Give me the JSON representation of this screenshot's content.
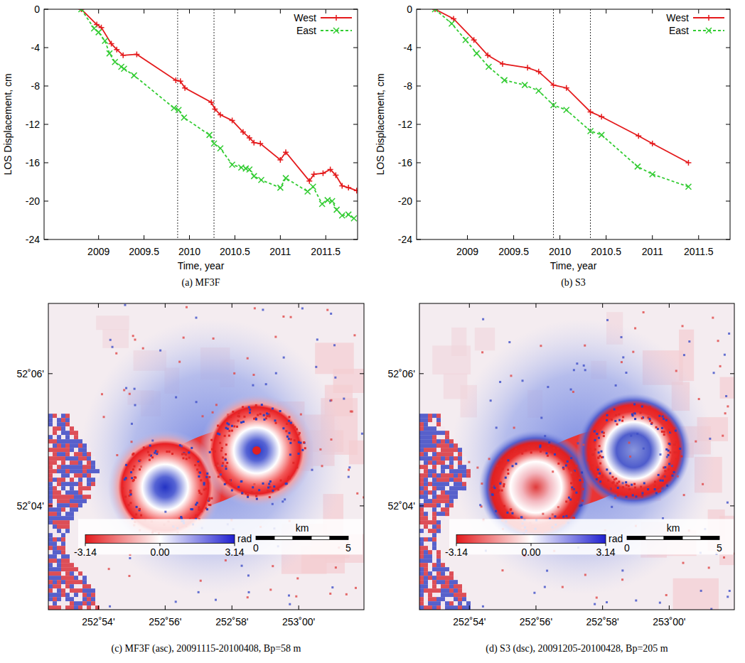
{
  "chart_data": [
    {
      "type": "line",
      "title": "(a) MF3F",
      "xlabel": "Time, year",
      "ylabel": "LOS Displacement, cm",
      "xlim": [
        2008.4,
        2011.85
      ],
      "ylim": [
        -24,
        0
      ],
      "xticks": [
        2009,
        2009.5,
        2010,
        2010.5,
        2011,
        2011.5
      ],
      "yticks": [
        0,
        -4,
        -8,
        -12,
        -16,
        -20,
        -24
      ],
      "grid": false,
      "legend": "top-right",
      "vlines": [
        2009.87,
        2010.27
      ],
      "series": [
        {
          "name": "West",
          "color": "#e41a1c",
          "marker": "plus",
          "line_style": "solid",
          "x": [
            2008.81,
            2008.98,
            2009.03,
            2009.14,
            2009.2,
            2009.27,
            2009.42,
            2009.85,
            2009.9,
            2009.95,
            2010.24,
            2010.28,
            2010.34,
            2010.47,
            2010.59,
            2010.66,
            2010.71,
            2010.78,
            2011.0,
            2011.06,
            2011.32,
            2011.37,
            2011.47,
            2011.55,
            2011.61,
            2011.68,
            2011.75,
            2011.84
          ],
          "values": [
            0,
            -1.6,
            -1.9,
            -3.6,
            -4.2,
            -4.8,
            -4.7,
            -7.4,
            -7.5,
            -8.2,
            -9.7,
            -10.4,
            -11.0,
            -11.6,
            -12.8,
            -13.4,
            -13.9,
            -14.0,
            -15.7,
            -14.9,
            -17.9,
            -17.2,
            -17.1,
            -16.7,
            -17.3,
            -18.4,
            -18.6,
            -18.9
          ]
        },
        {
          "name": "East",
          "color": "#33cc33",
          "marker": "cross",
          "line_style": "dashed",
          "x": [
            2008.81,
            2008.95,
            2009.0,
            2009.07,
            2009.12,
            2009.18,
            2009.25,
            2009.28,
            2009.39,
            2009.83,
            2009.88,
            2009.94,
            2010.22,
            2010.27,
            2010.34,
            2010.47,
            2010.57,
            2010.62,
            2010.66,
            2010.71,
            2010.79,
            2011.0,
            2011.06,
            2011.3,
            2011.36,
            2011.46,
            2011.52,
            2011.57,
            2011.62,
            2011.68,
            2011.75,
            2011.81
          ],
          "values": [
            0,
            -2.0,
            -2.4,
            -3.3,
            -4.6,
            -5.5,
            -6.0,
            -6.2,
            -6.9,
            -10.3,
            -10.5,
            -11.3,
            -13.1,
            -14.0,
            -14.5,
            -16.2,
            -16.5,
            -16.6,
            -16.7,
            -17.4,
            -17.8,
            -18.6,
            -17.6,
            -19.0,
            -18.5,
            -20.3,
            -19.9,
            -20.0,
            -20.9,
            -21.5,
            -21.4,
            -21.8
          ]
        }
      ]
    },
    {
      "type": "line",
      "title": "(b) S3",
      "xlabel": "Time, year",
      "ylabel": "LOS Displacement, cm",
      "xlim": [
        2008.45,
        2011.84
      ],
      "ylim": [
        -24,
        0
      ],
      "xticks": [
        2009,
        2009.5,
        2010,
        2010.5,
        2011,
        2011.5
      ],
      "yticks": [
        0,
        -4,
        -8,
        -12,
        -16,
        -20,
        -24
      ],
      "grid": false,
      "legend": "top-right",
      "vlines": [
        2009.93,
        2010.33
      ],
      "series": [
        {
          "name": "West",
          "color": "#e41a1c",
          "marker": "plus",
          "line_style": "solid",
          "x": [
            2008.65,
            2008.85,
            2009.07,
            2009.22,
            2009.38,
            2009.65,
            2009.77,
            2009.93,
            2010.07,
            2010.33,
            2010.45,
            2010.85,
            2011.0,
            2011.39
          ],
          "values": [
            0,
            -1.0,
            -3.2,
            -4.8,
            -5.7,
            -6.1,
            -6.5,
            -7.9,
            -8.2,
            -10.7,
            -11.2,
            -13.2,
            -14.0,
            -16.0
          ]
        },
        {
          "name": "East",
          "color": "#33cc33",
          "marker": "cross",
          "line_style": "dashed",
          "x": [
            2008.65,
            2008.83,
            2008.98,
            2009.1,
            2009.23,
            2009.4,
            2009.62,
            2009.77,
            2009.93,
            2010.07,
            2010.33,
            2010.45,
            2010.84,
            2011.0,
            2011.39
          ],
          "values": [
            0,
            -1.5,
            -3.2,
            -4.6,
            -6.0,
            -7.4,
            -7.9,
            -8.5,
            -10.0,
            -10.5,
            -12.7,
            -13.1,
            -16.4,
            -17.2,
            -18.5
          ]
        }
      ]
    },
    {
      "type": "map",
      "title": "(c) MF3F (asc), 20091115-20100408, Bp=58 m",
      "xlim": [
        252.875,
        253.0326
      ],
      "ylim": [
        52.0405,
        52.1177
      ],
      "xticks": [
        {
          "value": 252.9,
          "label": "252˚54'"
        },
        {
          "value": 252.93333,
          "label": "252˚56'"
        },
        {
          "value": 252.96667,
          "label": "252˚58'"
        },
        {
          "value": 253.0,
          "label": "253˚00'"
        }
      ],
      "yticks": [
        {
          "value": 52.06667,
          "label": "52˚04'"
        },
        {
          "value": 52.1,
          "label": "52˚06'"
        }
      ],
      "colorbar": {
        "label": "rad",
        "range": [
          -3.14,
          3.14
        ],
        "ticks": [
          -3.14,
          {
            "value": 0,
            "label": "0.00"
          },
          3.14
        ]
      },
      "scale_bar": {
        "label": "km",
        "ticks": [
          0,
          5
        ]
      }
    },
    {
      "type": "map",
      "title": "(d) S3 (dsc), 20091205-20100428, Bp=205 m",
      "xlim": [
        252.875,
        253.0326
      ],
      "ylim": [
        52.0405,
        52.1177
      ],
      "xticks": [
        {
          "value": 252.9,
          "label": "252˚54'"
        },
        {
          "value": 252.93333,
          "label": "252˚56'"
        },
        {
          "value": 252.96667,
          "label": "252˚58'"
        },
        {
          "value": 253.0,
          "label": "253˚00'"
        }
      ],
      "yticks": [
        {
          "value": 52.06667,
          "label": "52˚04'"
        },
        {
          "value": 52.1,
          "label": "52˚06'"
        }
      ],
      "colorbar": {
        "label": "rad",
        "range": [
          -3.14,
          3.14
        ],
        "ticks": [
          -3.14,
          {
            "value": 0,
            "label": "0.00"
          },
          3.14
        ]
      },
      "scale_bar": {
        "label": "km",
        "ticks": [
          0,
          5
        ]
      }
    }
  ]
}
